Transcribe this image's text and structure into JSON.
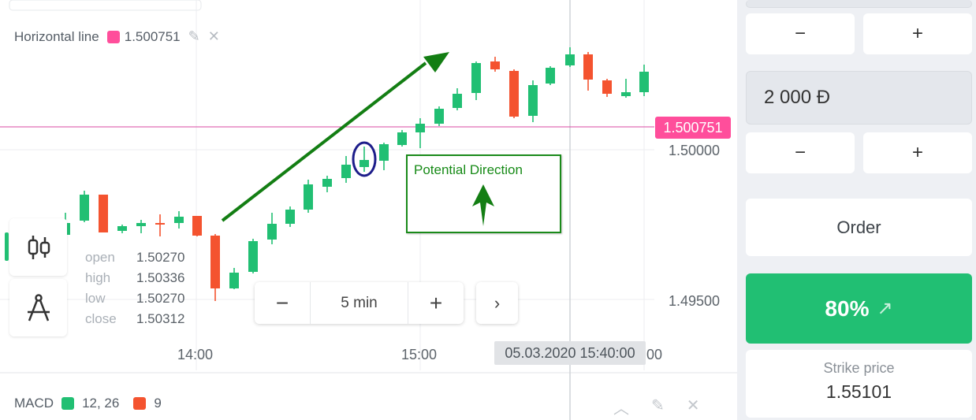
{
  "legend": {
    "label": "Horizontal line",
    "color": "#ff4e9b",
    "value": "1.500751"
  },
  "price_tag": "1.500751",
  "y_labels": [
    "1.50000",
    "1.49500"
  ],
  "x_labels": [
    "14:00",
    "15:00",
    "00"
  ],
  "ohlc": {
    "open_label": "open",
    "open": "1.50270",
    "high_label": "high",
    "high": "1.50336",
    "low_label": "low",
    "low": "1.50270",
    "close_label": "close",
    "close": "1.50312"
  },
  "zoom": {
    "minus": "−",
    "label": "5 min",
    "plus": "+"
  },
  "next": "›",
  "time_tag": "05.03.2020 15:40:00",
  "annotation": "Potential Direction",
  "macd": {
    "label": "MACD",
    "fast_color": "#21bf73",
    "fast": "12, 26",
    "signal_color": "#f4532f",
    "signal": "9"
  },
  "colors": {
    "up": "#21bf73",
    "down": "#f4532f",
    "accent": "#ff4e9b"
  },
  "right_panel": {
    "time_minus": "−",
    "time_plus": "+",
    "amount": "2 000 Đ",
    "amount_minus": "−",
    "amount_plus": "+",
    "order": "Order",
    "payout": "80%",
    "payout_arrow": "↗",
    "strike_label": "Strike price",
    "strike_value": "1.55101"
  }
}
